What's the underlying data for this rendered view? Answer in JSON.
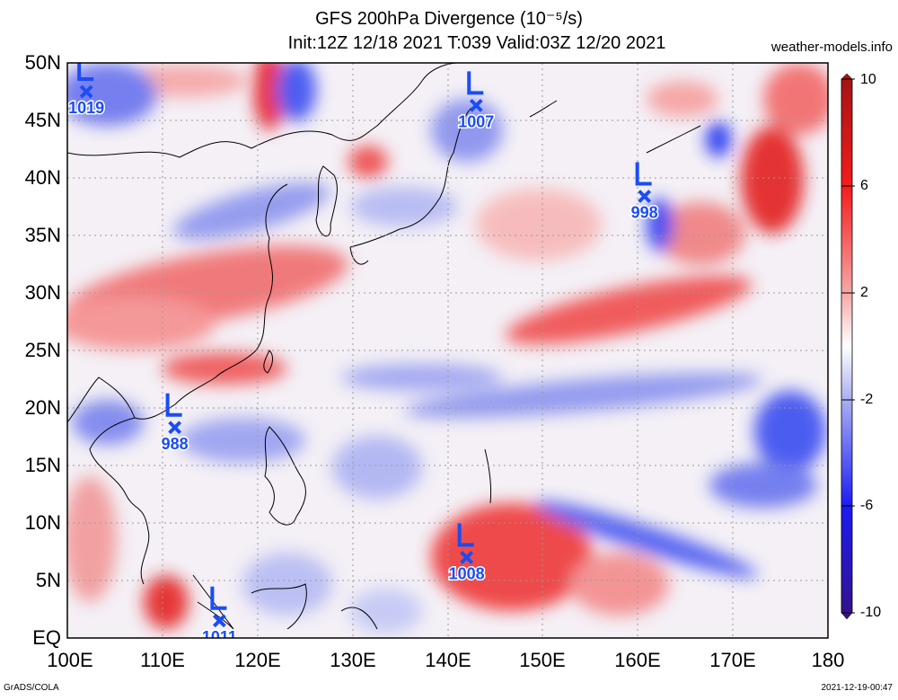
{
  "title_line1": "GFS 200hPa Divergence (10⁻⁵/s)",
  "title_line2": "Init:12Z 12/18 2021 T:039 Valid:03Z 12/20 2021",
  "site": "weather-models.info",
  "footer_left": "GrADS/COLA",
  "footer_right": "2021-12-19-00:47",
  "y_axis_labels": [
    "50N",
    "45N",
    "40N",
    "35N",
    "30N",
    "25N",
    "20N",
    "15N",
    "10N",
    "5N",
    "EQ"
  ],
  "x_axis_labels": [
    "100E",
    "110E",
    "120E",
    "130E",
    "140E",
    "150E",
    "160E",
    "170E",
    "180"
  ],
  "colorbar": {
    "labels": [
      "10",
      "6",
      "2",
      "-2",
      "-6",
      "-10"
    ],
    "colors": [
      "#b01a1a",
      "#f11b1b",
      "#f8a0a0",
      "#ffffff",
      "#a8acf2",
      "#1b1bf0",
      "#3a0f8f"
    ]
  },
  "low_centers": [
    {
      "label": "L",
      "value": "1019",
      "lon": 102,
      "lat": 47.5
    },
    {
      "label": "L",
      "value": "1007",
      "lon": 143,
      "lat": 46.3
    },
    {
      "label": "L",
      "value": "998",
      "lon": 160.7,
      "lat": 38.4
    },
    {
      "label": "L",
      "value": "988",
      "lon": 111.3,
      "lat": 18.3
    },
    {
      "label": "L",
      "value": "1008",
      "lon": 142,
      "lat": 7
    },
    {
      "label": "L",
      "value": "1011",
      "lon": 116,
      "lat": 1.5
    }
  ]
}
